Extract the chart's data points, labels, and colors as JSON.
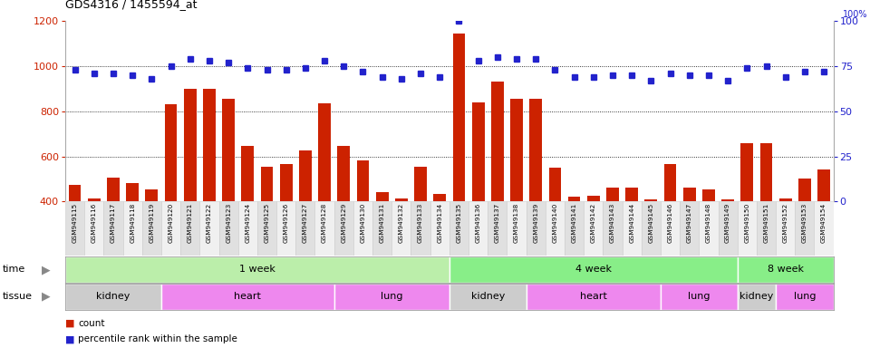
{
  "title": "GDS4316 / 1455594_at",
  "samples": [
    "GSM949115",
    "GSM949116",
    "GSM949117",
    "GSM949118",
    "GSM949119",
    "GSM949120",
    "GSM949121",
    "GSM949122",
    "GSM949123",
    "GSM949124",
    "GSM949125",
    "GSM949126",
    "GSM949127",
    "GSM949128",
    "GSM949129",
    "GSM949130",
    "GSM949131",
    "GSM949132",
    "GSM949133",
    "GSM949134",
    "GSM949135",
    "GSM949136",
    "GSM949137",
    "GSM949138",
    "GSM949139",
    "GSM949140",
    "GSM949141",
    "GSM949142",
    "GSM949143",
    "GSM949144",
    "GSM949145",
    "GSM949146",
    "GSM949147",
    "GSM949148",
    "GSM949149",
    "GSM949150",
    "GSM949151",
    "GSM949152",
    "GSM949153",
    "GSM949154"
  ],
  "counts": [
    475,
    415,
    505,
    480,
    455,
    830,
    900,
    900,
    855,
    648,
    555,
    565,
    628,
    835,
    648,
    580,
    440,
    415,
    555,
    435,
    1145,
    840,
    930,
    855,
    855,
    550,
    420,
    425,
    460,
    460,
    408,
    565,
    460,
    455,
    408,
    660,
    660,
    415,
    500,
    540
  ],
  "percentiles": [
    73,
    71,
    71,
    70,
    68,
    75,
    79,
    78,
    77,
    74,
    73,
    73,
    74,
    78,
    75,
    72,
    69,
    68,
    71,
    69,
    100,
    78,
    80,
    79,
    79,
    73,
    69,
    69,
    70,
    70,
    67,
    71,
    70,
    70,
    67,
    74,
    75,
    69,
    72,
    72
  ],
  "ylim_left": [
    400,
    1200
  ],
  "ylim_right": [
    0,
    100
  ],
  "yticks_left": [
    400,
    600,
    800,
    1000,
    1200
  ],
  "yticks_right": [
    0,
    25,
    50,
    75,
    100
  ],
  "bar_color": "#cc2200",
  "dot_color": "#2222cc",
  "bg_color": "#ffffff",
  "time_groups": [
    {
      "label": "1 week",
      "start": 0,
      "end": 19,
      "color": "#bbeeaa"
    },
    {
      "label": "4 week",
      "start": 20,
      "end": 34,
      "color": "#88ee88"
    },
    {
      "label": "8 week",
      "start": 35,
      "end": 39,
      "color": "#88ee88"
    }
  ],
  "tissue_groups": [
    {
      "label": "kidney",
      "start": 0,
      "end": 4,
      "color": "#dddddd"
    },
    {
      "label": "heart",
      "start": 5,
      "end": 13,
      "color": "#ee88ee"
    },
    {
      "label": "lung",
      "start": 14,
      "end": 19,
      "color": "#ee88ee"
    },
    {
      "label": "kidney",
      "start": 20,
      "end": 23,
      "color": "#dddddd"
    },
    {
      "label": "heart",
      "start": 24,
      "end": 30,
      "color": "#ee88ee"
    },
    {
      "label": "lung",
      "start": 31,
      "end": 34,
      "color": "#ee88ee"
    },
    {
      "label": "kidney",
      "start": 35,
      "end": 36,
      "color": "#dddddd"
    },
    {
      "label": "lung",
      "start": 37,
      "end": 39,
      "color": "#ee88ee"
    }
  ],
  "bar_color_legend": "#cc2200",
  "dot_color_legend": "#2222cc",
  "xtick_bg_even": "#e0e0e0",
  "xtick_bg_odd": "#f0f0f0"
}
